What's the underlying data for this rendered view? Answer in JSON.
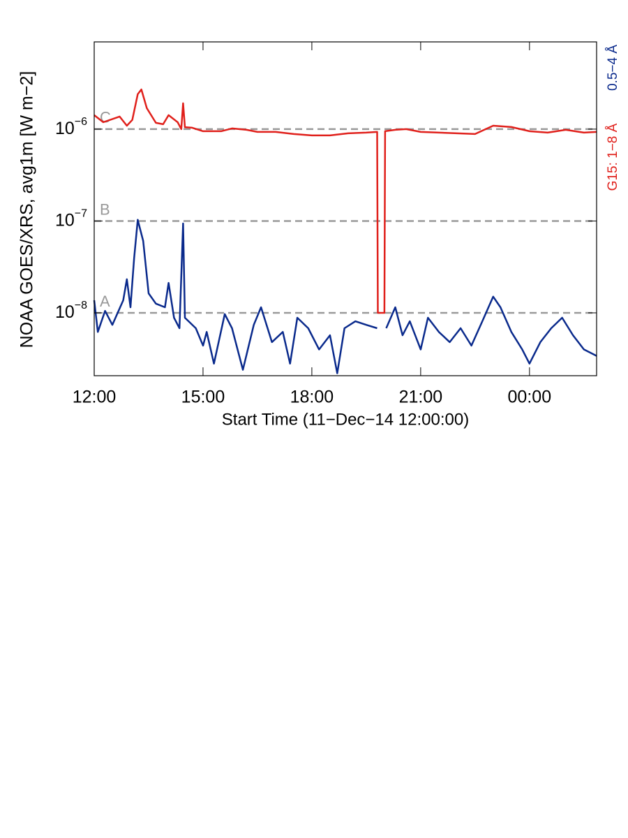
{
  "chart_data": {
    "type": "line",
    "ylabel": "NOAA GOES/XRS, avg1m [W m−2]",
    "xlabel": "Start Time (11−Dec−14 12:00:00)",
    "log_y": true,
    "xlim": [
      0,
      13.85
    ],
    "ylim": [
      2.07e-09,
      8.9e-06
    ],
    "xticks": [
      {
        "value": 0,
        "label": "12:00"
      },
      {
        "value": 3,
        "label": "15:00"
      },
      {
        "value": 6,
        "label": "18:00"
      },
      {
        "value": 9,
        "label": "21:00"
      },
      {
        "value": 12,
        "label": "00:00"
      }
    ],
    "yticks": [
      {
        "value": 1e-08,
        "label": "10−8"
      },
      {
        "value": 1e-07,
        "label": "10−7"
      },
      {
        "value": 1e-06,
        "label": "10−6"
      }
    ],
    "thresholds": [
      {
        "label": "A",
        "value": 1e-08
      },
      {
        "label": "B",
        "value": 1e-07
      },
      {
        "label": "C",
        "value": 1e-06
      }
    ],
    "threshold_color": "#999999",
    "series": [
      {
        "name": "G15: 1−8 Å",
        "color": "#e0201b",
        "x": [
          0,
          0.25,
          0.7,
          0.9,
          1.05,
          1.2,
          1.3,
          1.45,
          1.7,
          1.9,
          2.05,
          2.3,
          2.4,
          2.45,
          2.5,
          2.7,
          3.0,
          3.5,
          3.8,
          4.2,
          4.5,
          4.75,
          5.0,
          5.5,
          6.0,
          6.5,
          7.0,
          7.5,
          7.8,
          7.82,
          8.0,
          8.02,
          8.3,
          8.6,
          9.0,
          9.5,
          10.0,
          10.5,
          11.0,
          11.5,
          12.0,
          12.5,
          13.0,
          13.5,
          13.85
        ],
        "values": [
          1.42e-06,
          1.19e-06,
          1.37e-06,
          1.09e-06,
          1.26e-06,
          2.4e-06,
          2.7e-06,
          1.69e-06,
          1.17e-06,
          1.13e-06,
          1.42e-06,
          1.19e-06,
          1e-06,
          1.91e-06,
          1.05e-06,
          1.035e-06,
          9.49e-07,
          9.49e-07,
          1.018e-06,
          9.83e-07,
          9.32e-07,
          9.32e-07,
          9.32e-07,
          8.85e-07,
          8.54e-07,
          8.54e-07,
          9e-07,
          9.16e-07,
          9.32e-07,
          1e-08,
          1e-08,
          9.49e-07,
          9.83e-07,
          1e-06,
          9.32e-07,
          9.16e-07,
          9e-07,
          8.85e-07,
          1.09e-06,
          1.054e-06,
          9.49e-07,
          9.16e-07,
          9.83e-07,
          9.16e-07,
          9.32e-07
        ]
      },
      {
        "name": "0.5−4 Å",
        "color": "#0a2a8c",
        "x": [
          0,
          0.1,
          0.3,
          0.5,
          0.8,
          0.9,
          1.0,
          1.1,
          1.2,
          1.35,
          1.5,
          1.7,
          1.95,
          2.05,
          2.2,
          2.35,
          2.45,
          2.5,
          2.8,
          3.0,
          3.1,
          3.3,
          3.6,
          3.8,
          4.1,
          4.4,
          4.6,
          4.9,
          5.2,
          5.4,
          5.6,
          5.9,
          6.2,
          6.5,
          6.7,
          6.9,
          7.2,
          7.5,
          7.8,
          7.9,
          8.05,
          8.3,
          8.5,
          8.7,
          9.0,
          9.2,
          9.5,
          9.8,
          10.1,
          10.4,
          10.7,
          11.0,
          11.2,
          11.5,
          11.8,
          12.0,
          12.3,
          12.6,
          12.9,
          13.2,
          13.5,
          13.85
        ],
        "values": [
          1.37e-08,
          6.2e-09,
          1.05e-08,
          7.4e-09,
          1.37e-08,
          2.32e-08,
          1.15e-08,
          3.92e-08,
          1.03e-07,
          6.07e-08,
          1.63e-08,
          1.26e-08,
          1.15e-08,
          2.12e-08,
          8.85e-09,
          6.8e-09,
          9.4e-08,
          8.85e-09,
          6.8e-09,
          4.4e-09,
          6.2e-09,
          2.8e-09,
          9.7e-09,
          6.8e-09,
          2.4e-09,
          7.4e-09,
          1.15e-08,
          4.8e-09,
          6.2e-09,
          2.8e-09,
          8.85e-09,
          6.8e-09,
          4e-09,
          5.7e-09,
          2.2e-09,
          6.8e-09,
          8.1e-09,
          7.4e-09,
          6.8e-09,
          null,
          6.8e-09,
          1.15e-08,
          5.7e-09,
          8.1e-09,
          4e-09,
          8.85e-09,
          6.2e-09,
          4.8e-09,
          6.8e-09,
          4.4e-09,
          8.1e-09,
          1.5e-08,
          1.15e-08,
          6.2e-09,
          4e-09,
          2.8e-09,
          4.8e-09,
          6.8e-09,
          8.85e-09,
          5.7e-09,
          4e-09,
          3.4e-09
        ]
      }
    ]
  }
}
